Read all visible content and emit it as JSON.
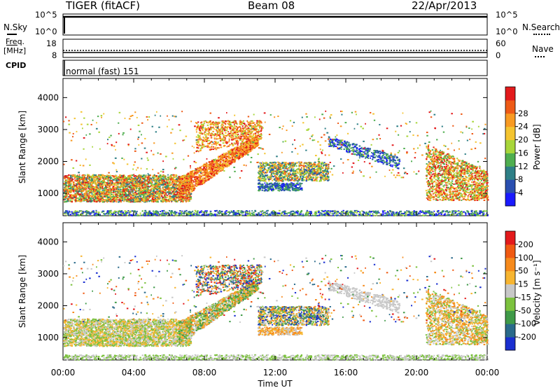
{
  "header": {
    "title": "TIGER (fitACF)",
    "beam": "Beam 08",
    "date": "22/Apr/2013"
  },
  "top_panels": {
    "nsky_label": "N.Sky",
    "nsky_ticks": [
      "10^5",
      "10^0"
    ],
    "nsearch_label": "N.Search",
    "nsearch_ticks": [
      "10^5",
      "10^0"
    ],
    "freq_label": "Freq.",
    "freq_unit": "[MHz]",
    "freq_ticks": [
      "18",
      "8"
    ],
    "nave_label": "Nave",
    "nave_ticks": [
      "60",
      "0"
    ],
    "cpid_label": "CPID",
    "cpid_value": "normal (fast) 151"
  },
  "chart_data": [
    {
      "type": "heatmap",
      "name": "power",
      "xlabel": "",
      "ylabel": "Slant Range [km]",
      "yticks": [
        "1000",
        "2000",
        "3000",
        "4000"
      ],
      "ylim": [
        300,
        4600
      ],
      "xlim": [
        0,
        24
      ],
      "colorbar": {
        "label": "Power [dB]",
        "ticks": [
          "4",
          "8",
          "12",
          "16",
          "20",
          "24",
          "28"
        ],
        "colors": [
          "#1a1aff",
          "#2a4fb0",
          "#2e7f86",
          "#4fae4f",
          "#a8d63a",
          "#f4c430",
          "#f89a22",
          "#ee5a16",
          "#e31a1c"
        ]
      }
    },
    {
      "type": "heatmap",
      "name": "velocity",
      "xlabel": "Time UT",
      "ylabel": "Slant Range [km]",
      "yticks": [
        "1000",
        "2000",
        "3000",
        "4000"
      ],
      "ylim": [
        300,
        4600
      ],
      "xlim": [
        0,
        24
      ],
      "xticks": [
        "00:00",
        "04:00",
        "08:00",
        "12:00",
        "16:00",
        "20:00",
        "00:00"
      ],
      "colorbar": {
        "label": "Velocity [m s⁻¹]",
        "ticks": [
          "200",
          "100",
          "50",
          "15",
          "-15",
          "-50",
          "-100",
          "-200"
        ],
        "colors": [
          "#1a2fd0",
          "#2a6a8a",
          "#3f9a48",
          "#7cc23e",
          "#c8c8c8",
          "#f7b531",
          "#f68a1c",
          "#f05a12",
          "#e31a1c"
        ]
      }
    }
  ]
}
